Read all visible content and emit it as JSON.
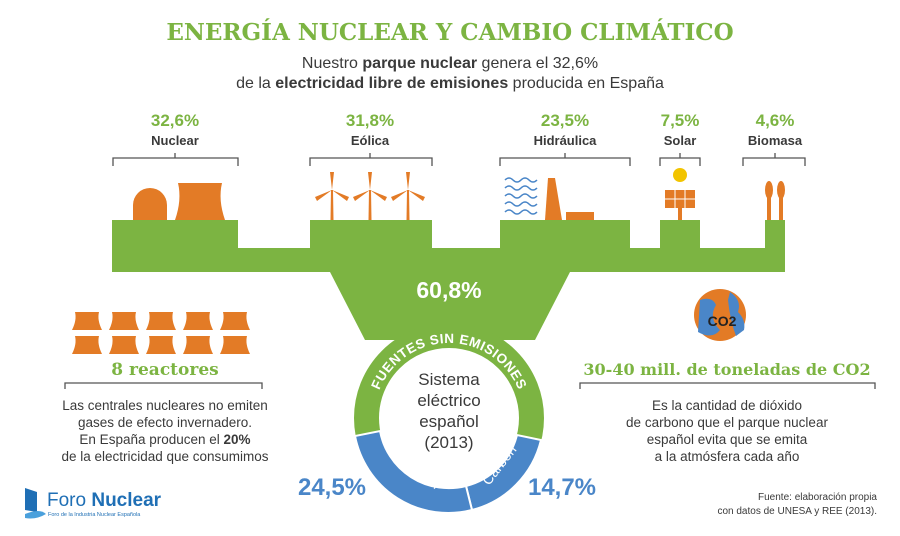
{
  "header": {
    "title": "ENERGÍA NUCLEAR Y CAMBIO CLIMÁTICO",
    "subtitle": [
      [
        "Nuestro ",
        "parque nuclear",
        " genera el 32,6%"
      ],
      [
        "de la ",
        "electricidad libre de emisiones",
        " producida en España"
      ]
    ]
  },
  "sources": [
    {
      "value": "32,6%",
      "label": "Nuclear"
    },
    {
      "value": "31,8%",
      "label": "Eólica"
    },
    {
      "value": "23,5%",
      "label": "Hidráulica"
    },
    {
      "value": "7,5%",
      "label": "Solar"
    },
    {
      "value": "4,6%",
      "label": "Biomasa"
    }
  ],
  "ring": {
    "total": "60,8%",
    "arc_label": "FUENTES SIN EMISIONES",
    "center": [
      "Sistema",
      "eléctrico",
      "español",
      "(2013)"
    ],
    "gas": {
      "label": "Gas/Fuel",
      "value": "24,5%"
    },
    "coal": {
      "label": "Carbón",
      "value": "14,7%"
    }
  },
  "reactors": {
    "title": "8 reactores",
    "text": [
      [
        "Las centrales nucleares no emiten"
      ],
      [
        "gases de efecto invernadero."
      ],
      [
        "En España producen el ",
        "20%"
      ],
      [
        "de la electricidad que consumimos"
      ]
    ]
  },
  "co2": {
    "icon": "CO2",
    "title": "30-40 mill. de toneladas de CO2",
    "text": [
      "Es la cantidad de dióxido",
      "de carbono que el parque nuclear",
      "español evita que se emita",
      "a la atmósfera cada año"
    ]
  },
  "logo": {
    "name": [
      "Foro ",
      "Nuclear"
    ],
    "tagline": "Foro de la Industria Nuclear Española"
  },
  "footer": [
    "Fuente: elaboración propia",
    "con datos de UNESA y REE (2013)."
  ]
}
